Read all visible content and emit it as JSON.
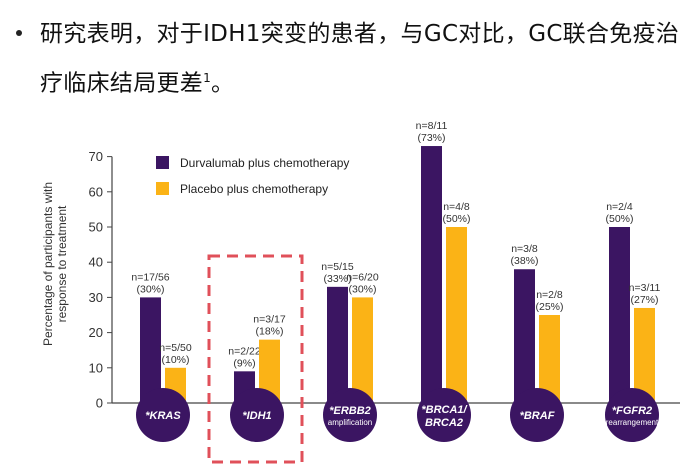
{
  "bullet": {
    "text": "研究表明，对于IDH1突变的患者，与GC对比，GC联合免疫治疗临床结局更差",
    "superscript": "1",
    "end": "。"
  },
  "colors": {
    "durvalumab": "#3b1562",
    "placebo": "#fbb316",
    "highlight_box": "#e0505a"
  },
  "chart_data": {
    "type": "bar",
    "title": "",
    "ylabel_lines": [
      "Percentage of participants with",
      "response to treatment"
    ],
    "xlabel": "",
    "ylim": [
      0,
      70
    ],
    "yticks": [
      0,
      10,
      20,
      30,
      40,
      50,
      60,
      70
    ],
    "grid": false,
    "legend_position": "top-left",
    "categories": [
      {
        "label": "*KRAS",
        "sublabel": ""
      },
      {
        "label": "*IDH1",
        "sublabel": ""
      },
      {
        "label": "*ERBB2",
        "sublabel": "amplification"
      },
      {
        "label": "*BRCA1/",
        "label2": "BRCA2",
        "sublabel": ""
      },
      {
        "label": "*BRAF",
        "sublabel": ""
      },
      {
        "label": "*FGFR2",
        "sublabel": "rearrangement"
      }
    ],
    "series": [
      {
        "name": "Durvalumab plus chemotherapy",
        "values": [
          30,
          9,
          33,
          73,
          38,
          50
        ],
        "annotations": [
          [
            "n=17/56",
            "(30%)"
          ],
          [
            "n=2/22",
            "(9%)"
          ],
          [
            "n=5/15",
            "(33%)"
          ],
          [
            "n=8/11",
            "(73%)"
          ],
          [
            "n=3/8",
            "(38%)"
          ],
          [
            "n=2/4",
            "(50%)"
          ]
        ]
      },
      {
        "name": "Placebo plus chemotherapy",
        "values": [
          10,
          18,
          30,
          50,
          25,
          27
        ],
        "annotations": [
          [
            "n=5/50",
            "(10%)"
          ],
          [
            "n=3/17",
            "(18%)"
          ],
          [
            "n=6/20",
            "(30%)"
          ],
          [
            "n=4/8",
            "(50%)"
          ],
          [
            "n=2/8",
            "(25%)"
          ],
          [
            "n=3/11",
            "(27%)"
          ]
        ]
      }
    ],
    "highlighted_category": "*IDH1"
  }
}
